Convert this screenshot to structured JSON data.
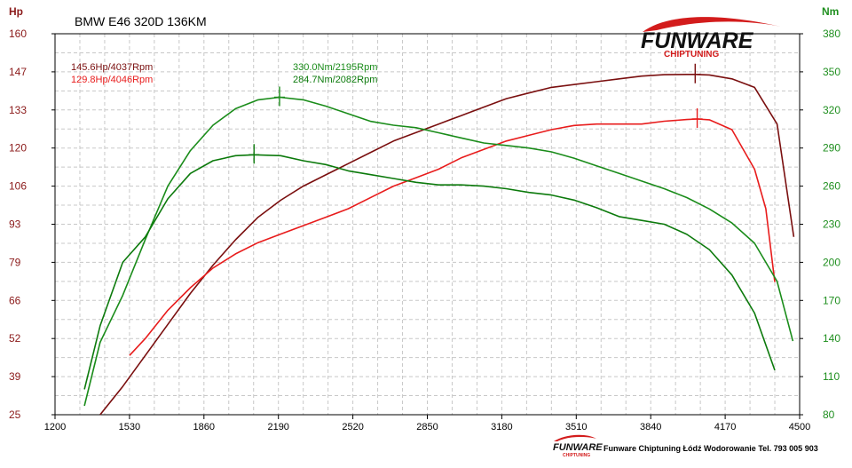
{
  "chart_data": {
    "type": "line",
    "title": "BMW E46 320D 136KM",
    "y_left_label": "Hp",
    "y_right_label": "Nm",
    "x_ticks": [
      1200,
      1530,
      1860,
      2190,
      2520,
      2850,
      3180,
      3510,
      3840,
      4170,
      4500
    ],
    "xlim": [
      1200,
      4500
    ],
    "y_left_ticks": [
      "25",
      "39",
      "52",
      "66",
      "79",
      "93",
      "106",
      "120",
      "133",
      "147",
      "160"
    ],
    "y_left_range": [
      25,
      160
    ],
    "y_right_ticks": [
      "80",
      "110",
      "140",
      "170",
      "200",
      "230",
      "260",
      "290",
      "320",
      "350",
      "380"
    ],
    "y_right_range": [
      80,
      380
    ],
    "grid": true,
    "legend": {
      "power_tuned": "145.6Hp/4037Rpm",
      "power_stock": "129.8Hp/4046Rpm",
      "torque_tuned": "330.0Nm/2195Rpm",
      "torque_stock": "284.7Nm/2082Rpm"
    },
    "series": [
      {
        "axis": "left",
        "color": "#7a0f0f",
        "peak": [
          4037,
          145.6
        ],
        "x": [
          1400,
          1500,
          1600,
          1700,
          1800,
          1900,
          2000,
          2100,
          2200,
          2300,
          2400,
          2500,
          2600,
          2700,
          2800,
          2900,
          3000,
          3100,
          3200,
          3300,
          3400,
          3500,
          3600,
          3700,
          3800,
          3900,
          4000,
          4037,
          4100,
          4200,
          4300,
          4400,
          4474
        ],
        "values": [
          25,
          35,
          46,
          57,
          68,
          78,
          87,
          95,
          101,
          106,
          110,
          114,
          118,
          122,
          125,
          128,
          131,
          134,
          137,
          139,
          141,
          142,
          143,
          144,
          145,
          145.5,
          145.6,
          145.6,
          145.4,
          144,
          141,
          128,
          88
        ]
      },
      {
        "axis": "left",
        "color": "#e81c1c",
        "peak": [
          4046,
          129.8
        ],
        "x": [
          1530,
          1600,
          1700,
          1800,
          1900,
          2000,
          2100,
          2200,
          2300,
          2400,
          2500,
          2600,
          2700,
          2800,
          2900,
          3000,
          3100,
          3200,
          3300,
          3400,
          3500,
          3600,
          3700,
          3800,
          3900,
          4000,
          4046,
          4100,
          4200,
          4300,
          4350,
          4390
        ],
        "values": [
          46,
          52,
          62,
          70,
          77,
          82,
          86,
          89,
          92,
          95,
          98,
          102,
          106,
          109,
          112,
          116,
          119,
          122,
          124,
          126,
          127.5,
          128,
          128,
          128,
          129,
          129.6,
          129.8,
          129.5,
          126,
          112,
          98,
          72
        ]
      },
      {
        "axis": "right",
        "color": "#1a8c1a",
        "peak": [
          2195,
          330.0
        ],
        "x": [
          1330,
          1400,
          1500,
          1600,
          1700,
          1800,
          1900,
          2000,
          2100,
          2195,
          2300,
          2400,
          2500,
          2600,
          2700,
          2800,
          2900,
          3000,
          3100,
          3200,
          3300,
          3400,
          3500,
          3600,
          3700,
          3800,
          3900,
          4000,
          4100,
          4200,
          4300,
          4400,
          4470
        ],
        "values": [
          87,
          137,
          174,
          218,
          260,
          288,
          308,
          321,
          328,
          330,
          328,
          323,
          317,
          311,
          308,
          306,
          302,
          298,
          294,
          292,
          290,
          287,
          282,
          276,
          270,
          264,
          258,
          251,
          242,
          231,
          215,
          185,
          138
        ]
      },
      {
        "axis": "right",
        "color": "#0c7a0c",
        "peak": [
          2082,
          284.7
        ],
        "x": [
          1330,
          1400,
          1500,
          1600,
          1700,
          1800,
          1900,
          2000,
          2082,
          2200,
          2300,
          2400,
          2500,
          2600,
          2700,
          2800,
          2900,
          3000,
          3100,
          3200,
          3300,
          3400,
          3500,
          3600,
          3700,
          3800,
          3900,
          4000,
          4100,
          4200,
          4300,
          4390
        ],
        "values": [
          100,
          150,
          200,
          220,
          250,
          270,
          280,
          284,
          284.7,
          284,
          280,
          277,
          272,
          269,
          266,
          263,
          261,
          261,
          260,
          258,
          255,
          253,
          249,
          243,
          236,
          233,
          230,
          222,
          210,
          190,
          160,
          115
        ]
      }
    ]
  },
  "branding": {
    "logo_main": "FUNWARE",
    "logo_sub": "CHIPTUNING",
    "footer_logo_main": "FUNWARE",
    "footer_logo_sub": "CHIPTUNING",
    "footer_text": "Funware Chiptuning Łódź Wodorowanie Tel. 793 005 903"
  },
  "colors": {
    "hp_axis": "#8b1a1a",
    "nm_axis": "#1f8f1f",
    "grid": "#c8c8c8",
    "logo_red": "#d31c1c"
  }
}
